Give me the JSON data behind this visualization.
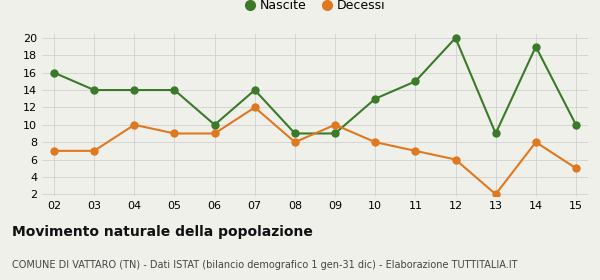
{
  "years": [
    "02",
    "03",
    "04",
    "05",
    "06",
    "07",
    "08",
    "09",
    "10",
    "11",
    "12",
    "13",
    "14",
    "15"
  ],
  "nascite": [
    16,
    14,
    14,
    14,
    10,
    14,
    9,
    9,
    13,
    15,
    20,
    9,
    19,
    10
  ],
  "decessi": [
    7,
    7,
    10,
    9,
    9,
    12,
    8,
    10,
    8,
    7,
    6,
    2,
    8,
    5
  ],
  "nascite_color": "#3a7a29",
  "decessi_color": "#e07820",
  "title": "Movimento naturale della popolazione",
  "subtitle": "COMUNE DI VATTARO (TN) - Dati ISTAT (bilancio demografico 1 gen-31 dic) - Elaborazione TUTTITALIA.IT",
  "legend_nascite": "Nascite",
  "legend_decessi": "Decessi",
  "ylim_min": 2,
  "ylim_max": 20,
  "yticks": [
    2,
    4,
    6,
    8,
    10,
    12,
    14,
    16,
    18,
    20
  ],
  "background_color": "#f0f0eb",
  "grid_color": "#d0d0d0",
  "title_fontsize": 10,
  "subtitle_fontsize": 7,
  "tick_fontsize": 8,
  "legend_fontsize": 9,
  "marker_size": 5,
  "linewidth": 1.5
}
